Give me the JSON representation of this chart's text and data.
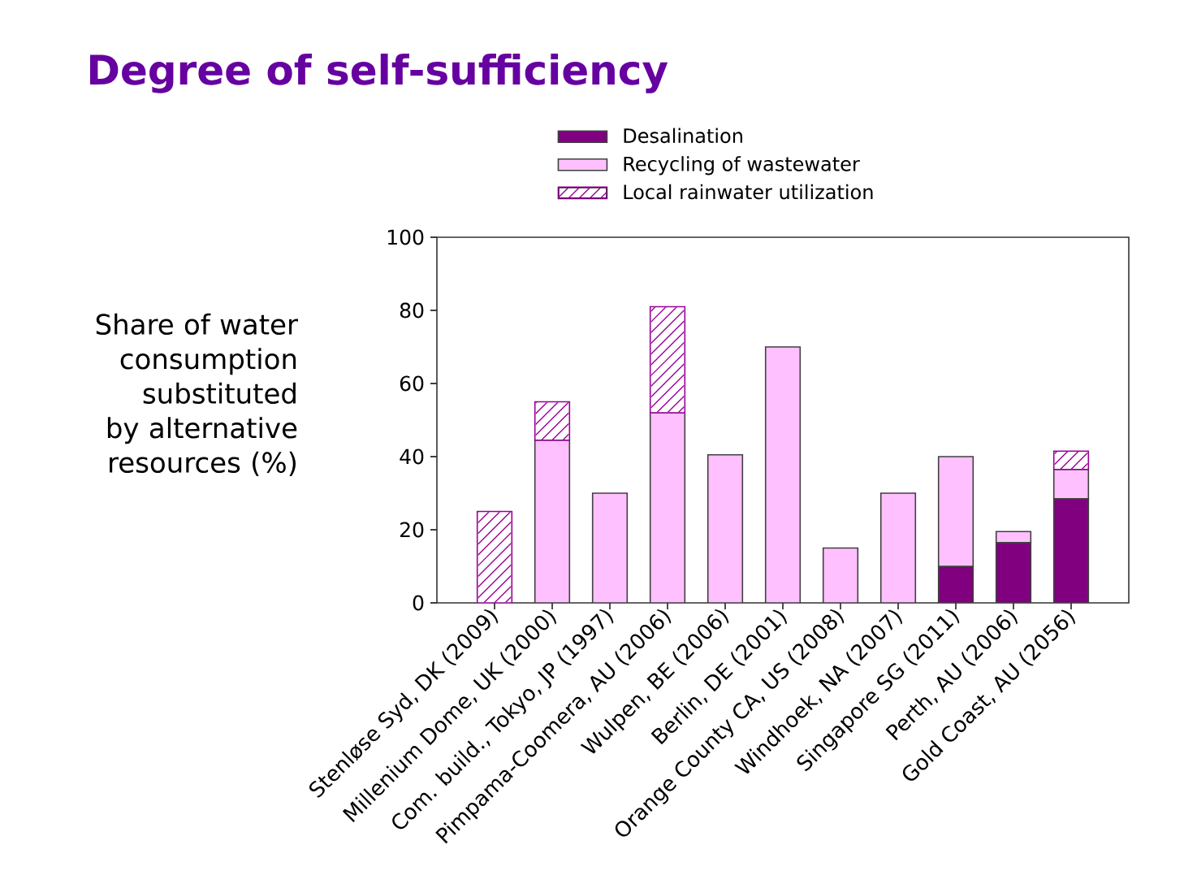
{
  "chart_data": {
    "type": "bar",
    "stacked": true,
    "title": "Degree of self-sufficiency",
    "ylabel": "Share of water consumption substituted by alternative resources (%)",
    "categories": [
      "Stenløse Syd, DK (2009)",
      "Millenium Dome, UK (2000)",
      "Com. build., Tokyo, JP (1997)",
      "Pimpama-Coomera, AU (2006)",
      "Wulpen, BE (2006)",
      "Berlin, DE (2001)",
      "Orange County CA, US (2008)",
      "Windhoek, NA (2007)",
      "Singapore SG (2011)",
      "Perth, AU (2006)",
      "Gold Coast, AU (2056)"
    ],
    "series": [
      {
        "name": "Desalination",
        "color": "#800080",
        "values": [
          null,
          null,
          null,
          null,
          null,
          null,
          null,
          null,
          10,
          16.5,
          28.5
        ]
      },
      {
        "name": "Recycling of wastewater",
        "color": "#ffc0ff",
        "values": [
          null,
          44.5,
          30,
          52,
          40.5,
          70,
          15,
          30,
          30,
          3,
          8
        ]
      },
      {
        "name": "Local rainwater utilization",
        "color": "#990099",
        "values": [
          25,
          10.5,
          null,
          29,
          null,
          null,
          null,
          null,
          null,
          null,
          5
        ]
      }
    ],
    "ylim": [
      0,
      100
    ],
    "yticks": [
      0,
      20,
      40,
      60,
      80,
      100
    ],
    "legend": "top"
  }
}
